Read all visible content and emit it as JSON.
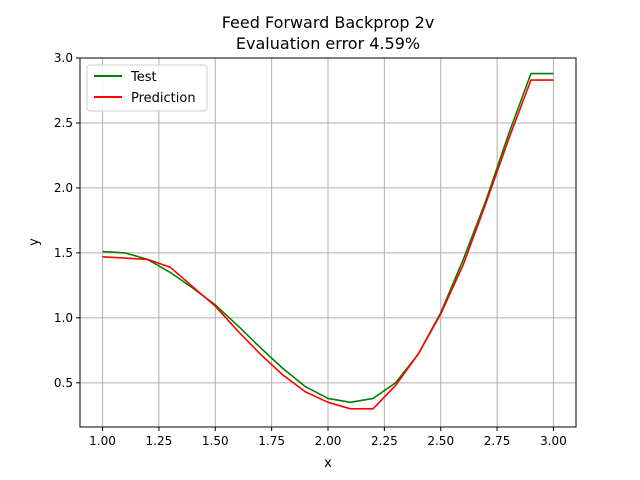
{
  "chart_data": {
    "type": "line",
    "title": "Feed Forward Backprop 2v",
    "subtitle": "Evaluation error 4.59%",
    "xlabel": "x",
    "ylabel": "y",
    "xlim": [
      0.9,
      3.1
    ],
    "ylim": [
      0.16,
      3.0
    ],
    "xticks": [
      "1.00",
      "1.25",
      "1.50",
      "1.75",
      "2.00",
      "2.25",
      "2.50",
      "2.75",
      "3.00"
    ],
    "yticks": [
      "0.5",
      "1.0",
      "1.5",
      "2.0",
      "2.5",
      "3.0"
    ],
    "grid": true,
    "legend": "top-left",
    "x": [
      1.0,
      1.1,
      1.2,
      1.3,
      1.4,
      1.5,
      1.6,
      1.7,
      1.8,
      1.9,
      2.0,
      2.1,
      2.2,
      2.3,
      2.4,
      2.5,
      2.6,
      2.7,
      2.8,
      2.9,
      3.0
    ],
    "series": [
      {
        "name": "Test",
        "color": "#008000",
        "values": [
          1.51,
          1.5,
          1.45,
          1.35,
          1.23,
          1.1,
          0.94,
          0.77,
          0.61,
          0.47,
          0.38,
          0.35,
          0.38,
          0.5,
          0.72,
          1.04,
          1.45,
          1.9,
          2.41,
          2.88,
          2.88
        ]
      },
      {
        "name": "Prediction",
        "color": "#ff0000",
        "values": [
          1.47,
          1.46,
          1.45,
          1.39,
          1.24,
          1.09,
          0.9,
          0.72,
          0.56,
          0.43,
          0.35,
          0.3,
          0.3,
          0.48,
          0.72,
          1.03,
          1.41,
          1.88,
          2.37,
          2.83,
          2.83
        ]
      }
    ]
  }
}
